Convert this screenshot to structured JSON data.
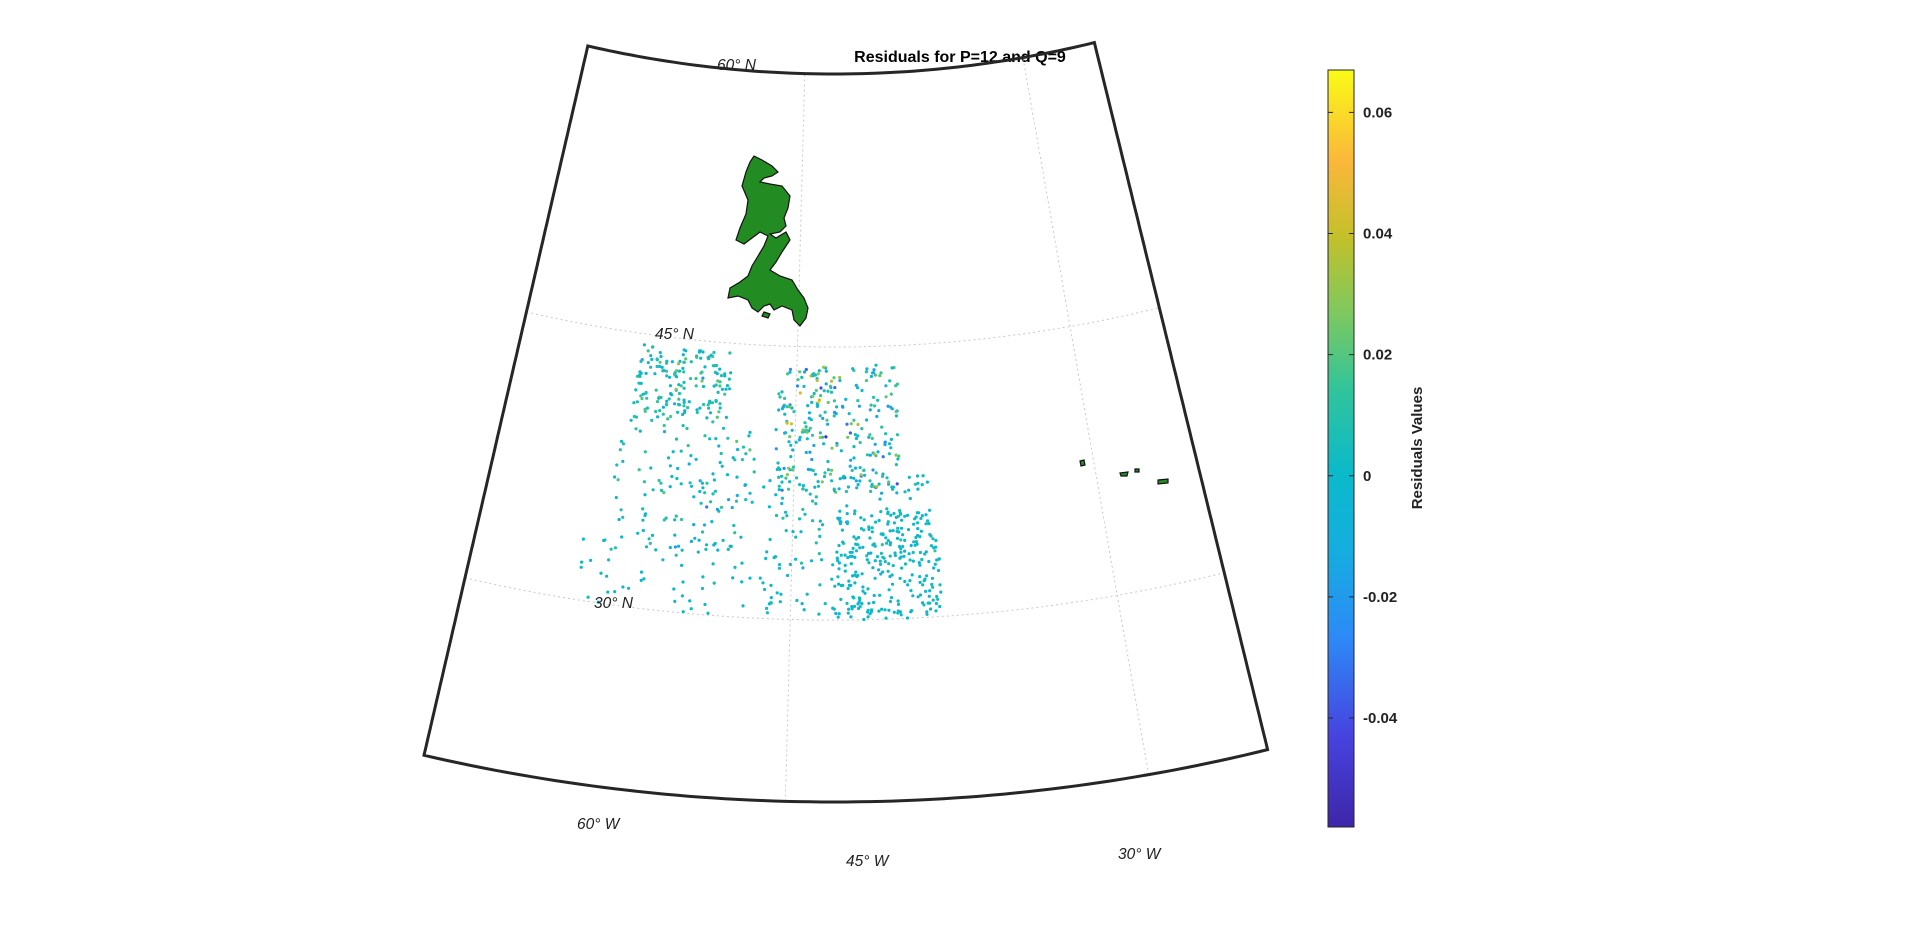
{
  "chart_data": {
    "type": "scatter",
    "title": "Residuals for P=12 and Q=9",
    "projection": "conic",
    "lat_lim": [
      20,
      60
    ],
    "lon_lim": [
      -60,
      -25
    ],
    "lat_ticks": [
      {
        "value": 60,
        "label": "60° N"
      },
      {
        "value": 45,
        "label": "45° N"
      },
      {
        "value": 30,
        "label": "30° N"
      }
    ],
    "lon_ticks": [
      {
        "value": -60,
        "label": "60° W"
      },
      {
        "value": -45,
        "label": "45° W"
      },
      {
        "value": -30,
        "label": "30° W"
      }
    ],
    "grid": true,
    "land_color": "#228B22",
    "colormap": "parula",
    "colorbar": {
      "label": "Residuals Values",
      "range": [
        -0.058,
        0.067
      ],
      "ticks": [
        {
          "value": 0.06,
          "label": "0.06"
        },
        {
          "value": 0.04,
          "label": "0.04"
        },
        {
          "value": 0.02,
          "label": "0.02"
        },
        {
          "value": 0,
          "label": "0"
        },
        {
          "value": -0.02,
          "label": "-0.02"
        },
        {
          "value": -0.04,
          "label": "-0.04"
        }
      ],
      "placement": "right"
    },
    "point_regions": [
      {
        "lat_range": [
          40.5,
          44.5
        ],
        "lon_range": [
          -53.5,
          -48.5
        ],
        "count": 170,
        "mean": 0.005,
        "spread": 0.01
      },
      {
        "lat_range": [
          37,
          44
        ],
        "lon_range": [
          -46,
          -39.5
        ],
        "count": 260,
        "mean": 0.003,
        "spread": 0.017
      },
      {
        "lat_range": [
          33,
          40.5
        ],
        "lon_range": [
          -54,
          -47
        ],
        "count": 140,
        "mean": 0.002,
        "spread": 0.008
      },
      {
        "lat_range": [
          33,
          38
        ],
        "lon_range": [
          -47,
          -38
        ],
        "count": 120,
        "mean": 0.002,
        "spread": 0.006
      },
      {
        "lat_range": [
          30,
          33.5
        ],
        "lon_range": [
          -55,
          -43
        ],
        "count": 70,
        "mean": 0.0,
        "spread": 0.002
      },
      {
        "lat_range": [
          30,
          36
        ],
        "lon_range": [
          -43,
          -38
        ],
        "count": 240,
        "mean": 0.0,
        "spread": 0.002
      }
    ]
  }
}
